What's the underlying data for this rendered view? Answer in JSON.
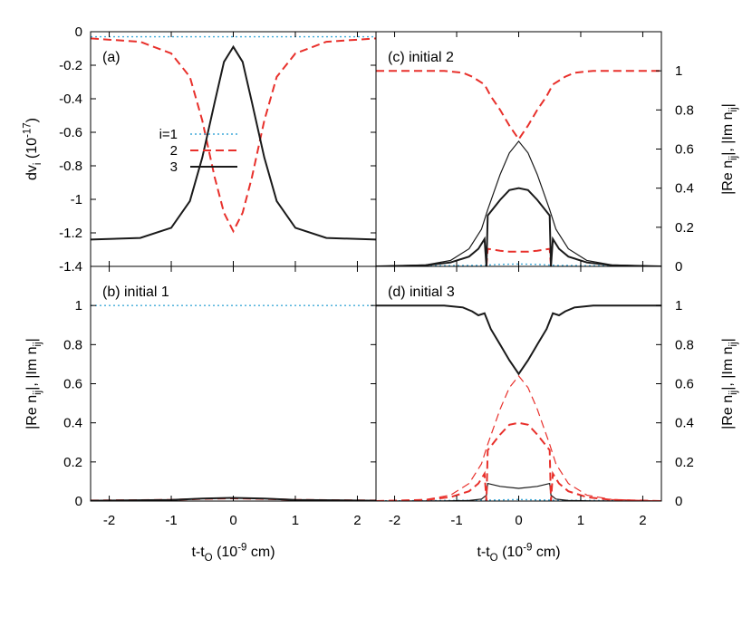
{
  "colors": {
    "i1": "#3fa9d8",
    "i2": "#e8302b",
    "i3": "#1a1a1a",
    "i3_light": "#555555",
    "frame": "#000000"
  },
  "legend": {
    "entries": [
      {
        "label": "i=1",
        "series": "i1",
        "dash": "dot"
      },
      {
        "label": "2",
        "series": "i2",
        "dash": "dash"
      },
      {
        "label": "3",
        "series": "i3",
        "dash": "solid"
      }
    ]
  },
  "chart_data": [
    {
      "id": "a",
      "type": "line",
      "tag": "(a)",
      "ylabel": "dv_i (10^-17)",
      "xlim": [
        -2.3,
        2.3
      ],
      "ylim": [
        -1.4,
        0
      ],
      "yticks": [
        "0",
        "-0.2",
        "-0.4",
        "-0.6",
        "-0.8",
        "-1",
        "-1.2",
        "-1.4"
      ],
      "series": [
        {
          "name": "i=1",
          "x": [
            -2.3,
            0,
            2.3
          ],
          "y": [
            -0.03,
            -0.03,
            -0.03
          ]
        },
        {
          "name": "2",
          "x": [
            -2.3,
            -1.5,
            -1.0,
            -0.7,
            -0.5,
            -0.3,
            -0.15,
            0,
            0.15,
            0.3,
            0.5,
            0.7,
            1.0,
            1.5,
            2.3
          ],
          "y": [
            -0.04,
            -0.06,
            -0.13,
            -0.27,
            -0.53,
            -0.87,
            -1.08,
            -1.19,
            -1.08,
            -0.87,
            -0.53,
            -0.27,
            -0.13,
            -0.06,
            -0.04
          ]
        },
        {
          "name": "3",
          "x": [
            -2.3,
            -1.5,
            -1.0,
            -0.7,
            -0.5,
            -0.3,
            -0.15,
            0,
            0.15,
            0.3,
            0.5,
            0.7,
            1.0,
            1.5,
            2.3
          ],
          "y": [
            -1.24,
            -1.23,
            -1.17,
            -1.01,
            -0.75,
            -0.42,
            -0.18,
            -0.09,
            -0.18,
            -0.42,
            -0.75,
            -1.01,
            -1.17,
            -1.23,
            -1.24
          ]
        }
      ]
    },
    {
      "id": "b",
      "type": "line",
      "tag": "(b) initial 1",
      "xlabel": "t-t_O (10^-9 cm)",
      "ylabel": "|Re n_ij|, |Im n_ij|",
      "xlim": [
        -2.3,
        2.3
      ],
      "ylim": [
        0,
        1.2
      ],
      "xticks": [
        "-2",
        "-1",
        "0",
        "1",
        "2"
      ],
      "yticks": [
        "0",
        "0.2",
        "0.4",
        "0.6",
        "0.8",
        "1"
      ],
      "series": [
        {
          "name": "i=1",
          "x": [
            -2.3,
            2.3
          ],
          "y": [
            1.0,
            1.0
          ]
        },
        {
          "name": "2",
          "x": [
            -2.3,
            -1.0,
            -0.5,
            0,
            0.5,
            1.0,
            2.3
          ],
          "y": [
            0.003,
            0.006,
            0.011,
            0.014,
            0.011,
            0.006,
            0.003
          ]
        },
        {
          "name": "3",
          "x": [
            -2.3,
            -1.0,
            -0.5,
            0,
            0.5,
            1.0,
            2.3
          ],
          "y": [
            0.002,
            0.006,
            0.013,
            0.016,
            0.013,
            0.006,
            0.002
          ]
        }
      ]
    },
    {
      "id": "c",
      "type": "line",
      "tag": "(c) initial 2",
      "ylabel": "|Re n_ij|, |Im n_ij|",
      "xlim": [
        -2.3,
        2.3
      ],
      "ylim": [
        0,
        1.2
      ],
      "yticks": [
        "0",
        "0.2",
        "0.4",
        "0.6",
        "0.8",
        "1"
      ],
      "series": [
        {
          "name": "2",
          "x": [
            -2.3,
            -1.2,
            -0.9,
            -0.75,
            -0.65,
            -0.55,
            -0.45,
            -0.3,
            -0.15,
            0,
            0.15,
            0.3,
            0.45,
            0.55,
            0.65,
            0.75,
            0.9,
            1.2,
            2.3
          ],
          "y": [
            1.0,
            1.0,
            0.99,
            0.97,
            0.95,
            0.93,
            0.87,
            0.8,
            0.72,
            0.65,
            0.72,
            0.8,
            0.87,
            0.93,
            0.95,
            0.97,
            0.99,
            1.0,
            1.0
          ]
        },
        {
          "name": "i=1",
          "x": [
            -2.3,
            -0.6,
            -0.3,
            0,
            0.3,
            0.6,
            2.3
          ],
          "y": [
            0.001,
            0.005,
            0.01,
            0.012,
            0.01,
            0.005,
            0.001
          ]
        },
        {
          "name": "2",
          "x": [
            -0.52,
            -0.5,
            -0.3,
            -0.15,
            0,
            0.15,
            0.3,
            0.5,
            0.52
          ],
          "y": [
            0.0,
            0.09,
            0.08,
            0.075,
            0.075,
            0.075,
            0.08,
            0.09,
            0.0
          ]
        },
        {
          "name": "3",
          "x": [
            -2.3,
            -1.5,
            -1.1,
            -0.8,
            -0.65,
            -0.55,
            -0.52,
            -0.5,
            -0.3,
            -0.15,
            0,
            0.15,
            0.3,
            0.5,
            0.52,
            0.55,
            0.65,
            0.8,
            1.1,
            1.5,
            2.3
          ],
          "y": [
            0.0,
            0.006,
            0.02,
            0.05,
            0.09,
            0.14,
            0.0,
            0.26,
            0.34,
            0.39,
            0.4,
            0.39,
            0.34,
            0.26,
            0.0,
            0.14,
            0.09,
            0.05,
            0.02,
            0.006,
            0.0
          ]
        },
        {
          "name": "3",
          "x": [
            -2.3,
            -1.5,
            -1.1,
            -0.8,
            -0.6,
            -0.5,
            -0.3,
            -0.15,
            0,
            0.15,
            0.3,
            0.5,
            0.6,
            0.8,
            1.1,
            1.5,
            2.3
          ],
          "y": [
            0.0,
            0.008,
            0.03,
            0.09,
            0.19,
            0.29,
            0.47,
            0.58,
            0.64,
            0.58,
            0.47,
            0.29,
            0.19,
            0.09,
            0.03,
            0.008,
            0.0
          ]
        }
      ]
    },
    {
      "id": "d",
      "type": "line",
      "tag": "(d) initial 3",
      "xlabel": "t-t_O (10^-9 cm)",
      "ylabel": "|Re n_ij|, |Im n_ij|",
      "xlim": [
        -2.3,
        2.3
      ],
      "ylim": [
        0,
        1.2
      ],
      "xticks": [
        "-2",
        "-1",
        "0",
        "1",
        "2"
      ],
      "yticks": [
        "0",
        "0.2",
        "0.4",
        "0.6",
        "0.8",
        "1"
      ],
      "series": [
        {
          "name": "3",
          "x": [
            -2.3,
            -1.2,
            -0.9,
            -0.75,
            -0.65,
            -0.55,
            -0.45,
            -0.3,
            -0.15,
            0,
            0.15,
            0.3,
            0.45,
            0.55,
            0.65,
            0.75,
            0.9,
            1.2,
            2.3
          ],
          "y": [
            1.0,
            1.0,
            0.99,
            0.97,
            0.95,
            0.96,
            0.88,
            0.8,
            0.72,
            0.65,
            0.72,
            0.8,
            0.88,
            0.96,
            0.95,
            0.97,
            0.99,
            1.0,
            1.0
          ]
        },
        {
          "name": "i=1",
          "x": [
            -2.3,
            -0.6,
            0,
            0.6,
            2.3
          ],
          "y": [
            0.001,
            0.004,
            0.008,
            0.004,
            0.001
          ]
        },
        {
          "name": "3",
          "x": [
            -2.3,
            -1.2,
            -0.8,
            -0.6,
            -0.52,
            -0.5,
            -0.3,
            0,
            0.3,
            0.5,
            0.52,
            0.6,
            0.8,
            1.2,
            2.3
          ],
          "y": [
            0.0,
            0.001,
            0.003,
            0.01,
            0.03,
            0.09,
            0.075,
            0.065,
            0.075,
            0.09,
            0.03,
            0.01,
            0.003,
            0.001,
            0.0
          ]
        },
        {
          "name": "2",
          "x": [
            -2.3,
            -1.5,
            -1.1,
            -0.8,
            -0.65,
            -0.55,
            -0.52,
            -0.5,
            -0.3,
            -0.15,
            0,
            0.15,
            0.3,
            0.5,
            0.52,
            0.55,
            0.65,
            0.8,
            1.1,
            1.5,
            2.3
          ],
          "y": [
            0.0,
            0.006,
            0.02,
            0.05,
            0.09,
            0.14,
            0.0,
            0.26,
            0.34,
            0.39,
            0.4,
            0.39,
            0.34,
            0.26,
            0.0,
            0.14,
            0.09,
            0.05,
            0.02,
            0.006,
            0.0
          ]
        },
        {
          "name": "2",
          "x": [
            -2.3,
            -1.5,
            -1.1,
            -0.8,
            -0.6,
            -0.5,
            -0.3,
            -0.15,
            0,
            0.15,
            0.3,
            0.5,
            0.6,
            0.8,
            1.1,
            1.5,
            2.3
          ],
          "y": [
            0.0,
            0.008,
            0.03,
            0.09,
            0.19,
            0.29,
            0.47,
            0.58,
            0.64,
            0.58,
            0.47,
            0.29,
            0.19,
            0.09,
            0.03,
            0.008,
            0.0
          ]
        }
      ]
    }
  ]
}
